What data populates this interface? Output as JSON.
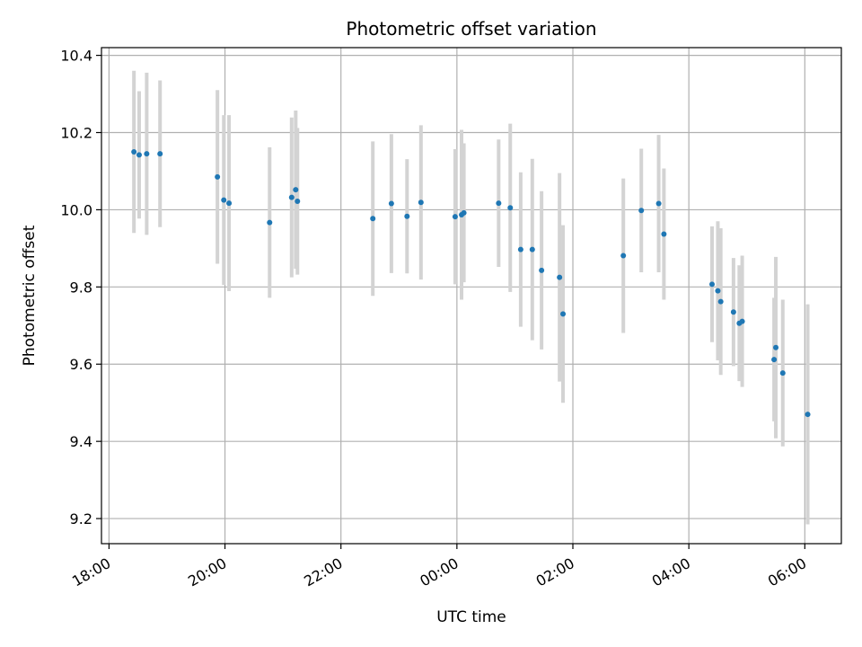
{
  "chart_data": {
    "type": "scatter",
    "title": "Photometric offset variation",
    "xlabel": "UTC time",
    "ylabel": "Photometric offset",
    "x_unit": "hours",
    "x_ticks": [
      {
        "label": "18:00",
        "value": 18
      },
      {
        "label": "20:00",
        "value": 20
      },
      {
        "label": "22:00",
        "value": 22
      },
      {
        "label": "00:00",
        "value": 24
      },
      {
        "label": "02:00",
        "value": 26
      },
      {
        "label": "04:00",
        "value": 28
      },
      {
        "label": "06:00",
        "value": 30
      }
    ],
    "y_ticks": [
      "9.2",
      "9.4",
      "9.6",
      "9.8",
      "10.0",
      "10.2",
      "10.4"
    ],
    "xlim": [
      17.87,
      30.63
    ],
    "ylim": [
      9.135,
      10.42
    ],
    "grid": true,
    "marker_color": "#1f77b4",
    "errorbar_color": "#d3d3d3",
    "points": [
      {
        "x": 18.43,
        "y": 10.15,
        "err": 0.21
      },
      {
        "x": 18.52,
        "y": 10.142,
        "err": 0.165
      },
      {
        "x": 18.65,
        "y": 10.145,
        "err": 0.21
      },
      {
        "x": 18.88,
        "y": 10.145,
        "err": 0.19
      },
      {
        "x": 19.87,
        "y": 10.085,
        "err": 0.225
      },
      {
        "x": 19.98,
        "y": 10.025,
        "err": 0.22
      },
      {
        "x": 20.07,
        "y": 10.017,
        "err": 0.228
      },
      {
        "x": 20.77,
        "y": 9.967,
        "err": 0.195
      },
      {
        "x": 21.15,
        "y": 10.032,
        "err": 0.207
      },
      {
        "x": 21.22,
        "y": 10.052,
        "err": 0.205
      },
      {
        "x": 21.25,
        "y": 10.022,
        "err": 0.19
      },
      {
        "x": 22.55,
        "y": 9.977,
        "err": 0.2
      },
      {
        "x": 22.87,
        "y": 10.016,
        "err": 0.18
      },
      {
        "x": 23.14,
        "y": 9.983,
        "err": 0.148
      },
      {
        "x": 23.38,
        "y": 10.019,
        "err": 0.2
      },
      {
        "x": 23.97,
        "y": 9.982,
        "err": 0.175
      },
      {
        "x": 24.08,
        "y": 9.987,
        "err": 0.22
      },
      {
        "x": 24.12,
        "y": 9.992,
        "err": 0.18
      },
      {
        "x": 24.72,
        "y": 10.017,
        "err": 0.165
      },
      {
        "x": 24.92,
        "y": 10.005,
        "err": 0.218
      },
      {
        "x": 25.1,
        "y": 9.897,
        "err": 0.2
      },
      {
        "x": 25.3,
        "y": 9.897,
        "err": 0.235
      },
      {
        "x": 25.46,
        "y": 9.843,
        "err": 0.205
      },
      {
        "x": 25.77,
        "y": 9.825,
        "err": 0.27
      },
      {
        "x": 25.83,
        "y": 9.73,
        "err": 0.23
      },
      {
        "x": 26.87,
        "y": 9.881,
        "err": 0.2
      },
      {
        "x": 27.18,
        "y": 9.998,
        "err": 0.16
      },
      {
        "x": 27.48,
        "y": 10.016,
        "err": 0.178
      },
      {
        "x": 27.57,
        "y": 9.937,
        "err": 0.17
      },
      {
        "x": 28.4,
        "y": 9.807,
        "err": 0.15
      },
      {
        "x": 28.5,
        "y": 9.79,
        "err": 0.18
      },
      {
        "x": 28.55,
        "y": 9.762,
        "err": 0.19
      },
      {
        "x": 28.77,
        "y": 9.735,
        "err": 0.14
      },
      {
        "x": 28.87,
        "y": 9.706,
        "err": 0.15
      },
      {
        "x": 28.92,
        "y": 9.711,
        "err": 0.17
      },
      {
        "x": 29.47,
        "y": 9.612,
        "err": 0.16
      },
      {
        "x": 29.5,
        "y": 9.643,
        "err": 0.235
      },
      {
        "x": 29.62,
        "y": 9.577,
        "err": 0.19
      },
      {
        "x": 30.05,
        "y": 9.47,
        "err": 0.285
      }
    ]
  }
}
